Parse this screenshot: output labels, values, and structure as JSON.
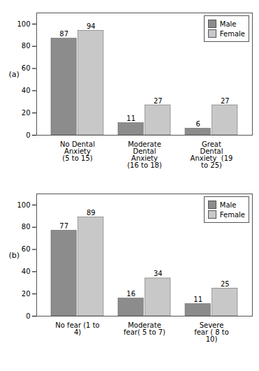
{
  "chart_data": [
    {
      "type": "bar",
      "ylabel": "(a)",
      "categories": [
        "No Dental\nAnxiety\n(5 to 15)",
        "Moderate\nDental\nAnxiety\n(16 to 18)",
        "Great\nDental\nAnxiety  (19\nto 25)"
      ],
      "series": [
        {
          "name": "Male",
          "color": "#8c8c8c",
          "values": [
            87,
            11,
            6
          ]
        },
        {
          "name": "Female",
          "color": "#c8c8c8",
          "values": [
            94,
            27,
            27
          ]
        }
      ],
      "ylim": [
        0,
        110
      ],
      "yticks": [
        0,
        20,
        40,
        60,
        80,
        100
      ],
      "data_labels": true,
      "legend": "upper right"
    },
    {
      "type": "bar",
      "ylabel": "(b)",
      "categories": [
        "No fear (1 to\n4)",
        "Moderate\nfear( 5 to 7)",
        "Severe\nfear ( 8 to\n10)"
      ],
      "series": [
        {
          "name": "Male",
          "color": "#8c8c8c",
          "values": [
            77,
            16,
            11
          ]
        },
        {
          "name": "Female",
          "color": "#c8c8c8",
          "values": [
            89,
            34,
            25
          ]
        }
      ],
      "ylim": [
        0,
        110
      ],
      "yticks": [
        0,
        20,
        40,
        60,
        80,
        100
      ],
      "data_labels": true,
      "legend": "upper right"
    }
  ]
}
